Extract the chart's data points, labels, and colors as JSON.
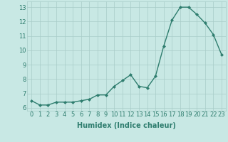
{
  "x": [
    0,
    1,
    2,
    3,
    4,
    5,
    6,
    7,
    8,
    9,
    10,
    11,
    12,
    13,
    14,
    15,
    16,
    17,
    18,
    19,
    20,
    21,
    22,
    23
  ],
  "y": [
    6.5,
    6.2,
    6.2,
    6.4,
    6.4,
    6.4,
    6.5,
    6.6,
    6.9,
    6.9,
    7.5,
    7.9,
    8.3,
    7.5,
    7.4,
    8.2,
    10.3,
    12.1,
    13.0,
    13.0,
    12.5,
    11.9,
    11.1,
    9.7
  ],
  "line_color": "#2e7d6e",
  "marker": "D",
  "marker_size": 2.0,
  "bg_color": "#c8e8e4",
  "grid_color": "#a8ccc8",
  "xlabel": "Humidex (Indice chaleur)",
  "xlim": [
    -0.5,
    23.5
  ],
  "ylim": [
    5.8,
    13.4
  ],
  "yticks": [
    6,
    7,
    8,
    9,
    10,
    11,
    12,
    13
  ],
  "xticks": [
    0,
    1,
    2,
    3,
    4,
    5,
    6,
    7,
    8,
    9,
    10,
    11,
    12,
    13,
    14,
    15,
    16,
    17,
    18,
    19,
    20,
    21,
    22,
    23
  ],
  "tick_label_fontsize": 6,
  "xlabel_fontsize": 7,
  "line_width": 1.0
}
